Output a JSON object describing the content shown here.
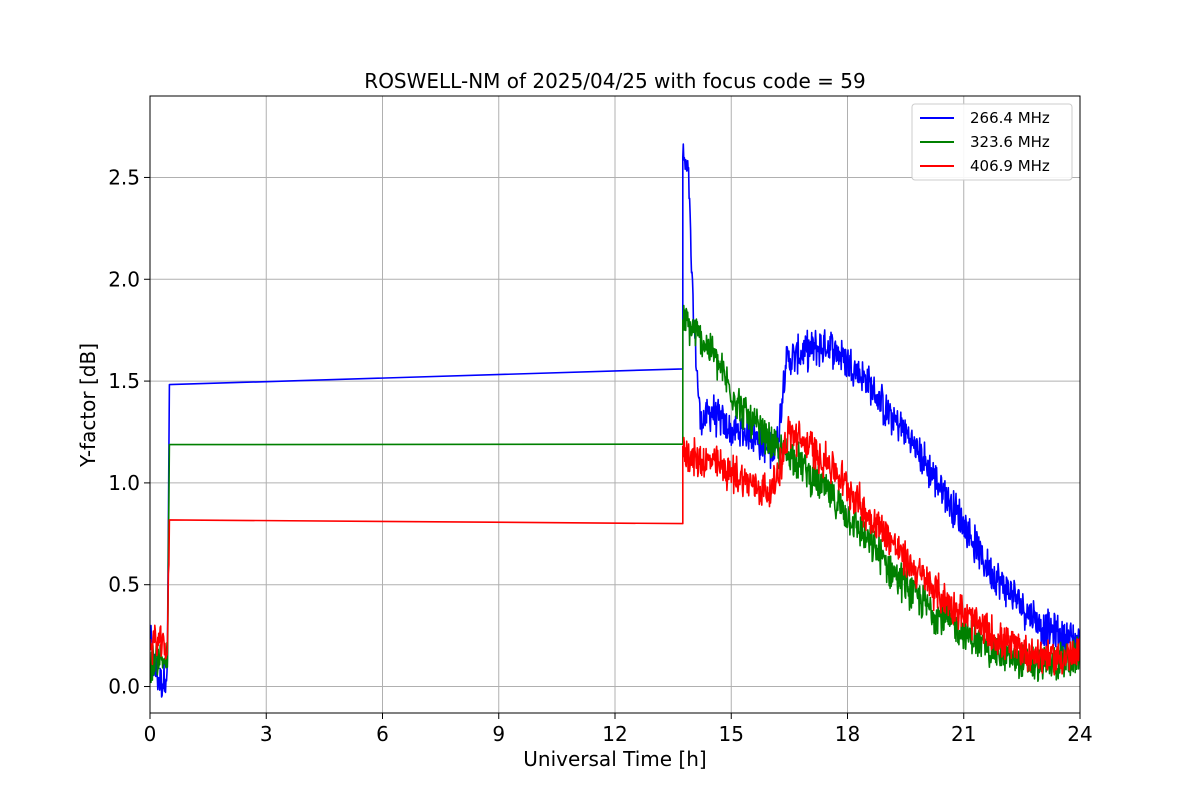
{
  "chart_data": {
    "type": "line",
    "title": "ROSWELL-NM of 2025/04/25 with focus code = 59",
    "xlabel": "Universal Time [h]",
    "ylabel": "Y-factor [dB]",
    "xlim": [
      0,
      24
    ],
    "ylim": [
      -0.13,
      2.9
    ],
    "x_ticks": [
      0,
      3,
      6,
      9,
      12,
      15,
      18,
      21,
      24
    ],
    "y_ticks": [
      0.0,
      0.5,
      1.0,
      1.5,
      2.0,
      2.5
    ],
    "x_tick_labels": [
      "0",
      "3",
      "6",
      "9",
      "12",
      "15",
      "18",
      "21",
      "24"
    ],
    "y_tick_labels": [
      "0.0",
      "0.5",
      "1.0",
      "1.5",
      "2.0",
      "2.5"
    ],
    "grid": true,
    "legend_position": "top-right",
    "series": [
      {
        "name": "266.4 MHz",
        "color": "#0000ff",
        "points": [
          [
            0.0,
            0.25
          ],
          [
            0.1,
            0.1
          ],
          [
            0.2,
            0.05
          ],
          [
            0.3,
            0.02
          ],
          [
            0.45,
            0.08
          ],
          [
            0.5,
            1.52
          ],
          [
            13.75,
            1.56
          ],
          [
            13.75,
            2.6
          ],
          [
            13.9,
            2.5
          ],
          [
            14.0,
            1.9
          ],
          [
            14.2,
            1.3
          ],
          [
            14.5,
            1.35
          ],
          [
            15.0,
            1.25
          ],
          [
            15.5,
            1.25
          ],
          [
            16.0,
            1.15
          ],
          [
            16.2,
            1.2
          ],
          [
            16.4,
            1.6
          ],
          [
            17.0,
            1.65
          ],
          [
            17.5,
            1.68
          ],
          [
            18.0,
            1.6
          ],
          [
            18.5,
            1.5
          ],
          [
            19.0,
            1.35
          ],
          [
            19.5,
            1.25
          ],
          [
            20.0,
            1.1
          ],
          [
            20.5,
            0.95
          ],
          [
            21.0,
            0.8
          ],
          [
            21.5,
            0.62
          ],
          [
            22.0,
            0.5
          ],
          [
            22.5,
            0.4
          ],
          [
            23.0,
            0.3
          ],
          [
            23.5,
            0.25
          ],
          [
            24.0,
            0.22
          ]
        ]
      },
      {
        "name": "323.6 MHz",
        "color": "#008000",
        "points": [
          [
            0.0,
            0.1
          ],
          [
            0.2,
            0.15
          ],
          [
            0.45,
            0.12
          ],
          [
            0.5,
            1.13
          ],
          [
            13.75,
            1.19
          ],
          [
            13.75,
            1.8
          ],
          [
            14.0,
            1.75
          ],
          [
            14.5,
            1.65
          ],
          [
            15.0,
            1.45
          ],
          [
            15.5,
            1.3
          ],
          [
            16.0,
            1.2
          ],
          [
            16.2,
            1.15
          ],
          [
            16.5,
            1.15
          ],
          [
            17.0,
            1.05
          ],
          [
            17.5,
            0.95
          ],
          [
            18.0,
            0.85
          ],
          [
            18.5,
            0.72
          ],
          [
            19.0,
            0.6
          ],
          [
            19.5,
            0.5
          ],
          [
            20.0,
            0.4
          ],
          [
            20.5,
            0.33
          ],
          [
            21.0,
            0.27
          ],
          [
            21.5,
            0.2
          ],
          [
            22.0,
            0.16
          ],
          [
            22.5,
            0.12
          ],
          [
            23.0,
            0.1
          ],
          [
            23.5,
            0.12
          ],
          [
            24.0,
            0.15
          ]
        ]
      },
      {
        "name": "406.9 MHz",
        "color": "#ff0000",
        "points": [
          [
            0.0,
            0.2
          ],
          [
            0.2,
            0.22
          ],
          [
            0.45,
            0.18
          ],
          [
            0.5,
            0.78
          ],
          [
            13.75,
            0.8
          ],
          [
            13.75,
            1.18
          ],
          [
            14.0,
            1.12
          ],
          [
            14.5,
            1.1
          ],
          [
            15.0,
            1.05
          ],
          [
            15.5,
            1.0
          ],
          [
            16.0,
            0.95
          ],
          [
            16.2,
            1.05
          ],
          [
            16.5,
            1.25
          ],
          [
            17.0,
            1.18
          ],
          [
            17.5,
            1.1
          ],
          [
            18.0,
            0.98
          ],
          [
            18.5,
            0.85
          ],
          [
            19.0,
            0.75
          ],
          [
            19.5,
            0.62
          ],
          [
            20.0,
            0.52
          ],
          [
            20.5,
            0.43
          ],
          [
            21.0,
            0.35
          ],
          [
            21.5,
            0.28
          ],
          [
            22.0,
            0.22
          ],
          [
            22.5,
            0.18
          ],
          [
            23.0,
            0.15
          ],
          [
            23.5,
            0.14
          ],
          [
            24.0,
            0.15
          ]
        ]
      }
    ]
  }
}
